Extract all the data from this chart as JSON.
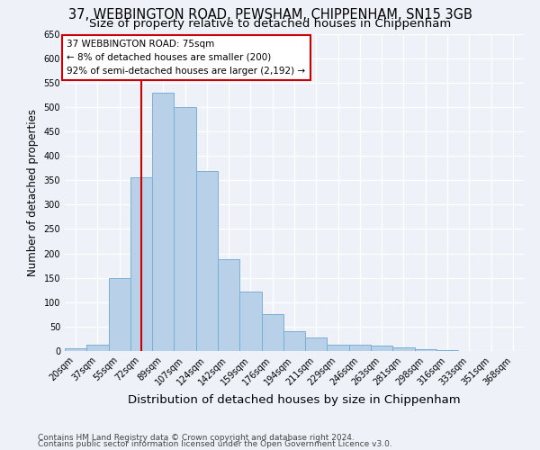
{
  "title1": "37, WEBBINGTON ROAD, PEWSHAM, CHIPPENHAM, SN15 3GB",
  "title2": "Size of property relative to detached houses in Chippenham",
  "xlabel": "Distribution of detached houses by size in Chippenham",
  "ylabel": "Number of detached properties",
  "categories": [
    "20sqm",
    "37sqm",
    "55sqm",
    "72sqm",
    "89sqm",
    "107sqm",
    "124sqm",
    "142sqm",
    "159sqm",
    "176sqm",
    "194sqm",
    "211sqm",
    "229sqm",
    "246sqm",
    "263sqm",
    "281sqm",
    "298sqm",
    "316sqm",
    "333sqm",
    "351sqm",
    "368sqm"
  ],
  "values": [
    5,
    12,
    150,
    355,
    530,
    500,
    368,
    188,
    122,
    76,
    40,
    27,
    12,
    13,
    11,
    8,
    3,
    1,
    0,
    0,
    0
  ],
  "bar_color": "#b8d0e8",
  "bar_edge_color": "#7aafd4",
  "red_line_x": 3,
  "annotation_text": "37 WEBBINGTON ROAD: 75sqm\n← 8% of detached houses are smaller (200)\n92% of semi-detached houses are larger (2,192) →",
  "annotation_box_color": "#ffffff",
  "annotation_box_edge": "#cc0000",
  "red_line_color": "#cc0000",
  "ylim": [
    0,
    650
  ],
  "yticks": [
    0,
    50,
    100,
    150,
    200,
    250,
    300,
    350,
    400,
    450,
    500,
    550,
    600,
    650
  ],
  "background_color": "#eef2f8",
  "footer1": "Contains HM Land Registry data © Crown copyright and database right 2024.",
  "footer2": "Contains public sector information licensed under the Open Government Licence v3.0.",
  "title_fontsize": 10.5,
  "subtitle_fontsize": 9.5,
  "tick_fontsize": 7,
  "ylabel_fontsize": 8.5,
  "xlabel_fontsize": 9.5,
  "footer_fontsize": 6.5,
  "annotation_fontsize": 7.5
}
